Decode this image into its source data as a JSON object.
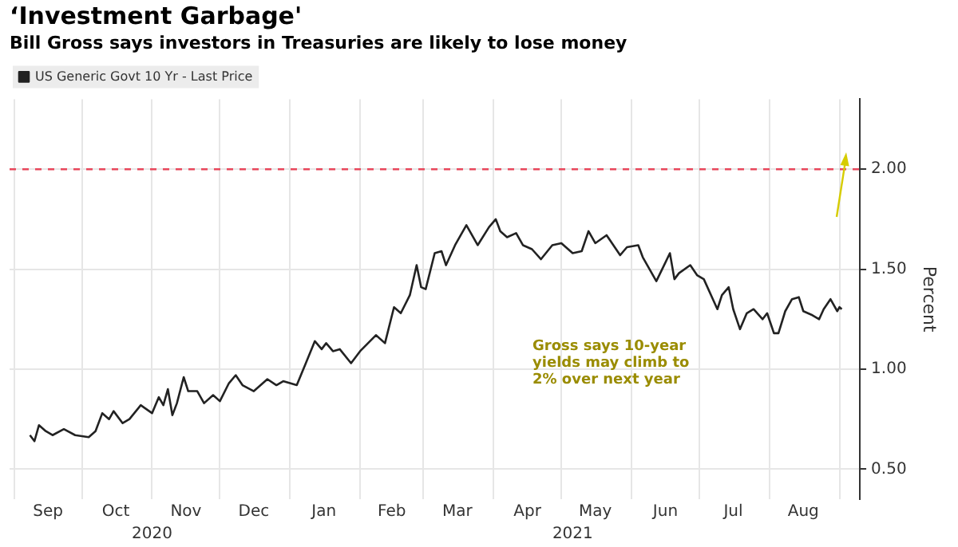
{
  "chart_data": {
    "type": "line",
    "title": "‘Investment Garbage'",
    "subtitle": "Bill Gross says investors in Treasuries are likely to lose money",
    "ylabel": "Percent",
    "annotations": [
      "Gross says 10-year yields may climb to 2% over next year"
    ],
    "x": [
      "2020-09-08",
      "2020-09-10",
      "2020-09-12",
      "2020-09-15",
      "2020-09-18",
      "2020-09-23",
      "2020-09-28",
      "2020-10-04",
      "2020-10-07",
      "2020-10-10",
      "2020-10-13",
      "2020-10-15",
      "2020-10-19",
      "2020-10-22",
      "2020-10-27",
      "2020-11-01",
      "2020-11-04",
      "2020-11-06",
      "2020-11-08",
      "2020-11-10",
      "2020-11-12",
      "2020-11-15",
      "2020-11-17",
      "2020-11-21",
      "2020-11-24",
      "2020-11-28",
      "2020-12-01",
      "2020-12-05",
      "2020-12-08",
      "2020-12-11",
      "2020-12-16",
      "2020-12-22",
      "2020-12-26",
      "2020-12-29",
      "2021-01-04",
      "2021-01-08",
      "2021-01-12",
      "2021-01-15",
      "2021-01-17",
      "2021-01-20",
      "2021-01-23",
      "2021-01-28",
      "2021-02-01",
      "2021-02-08",
      "2021-02-12",
      "2021-02-16",
      "2021-02-19",
      "2021-02-23",
      "2021-02-26",
      "2021-02-28",
      "2021-03-02",
      "2021-03-06",
      "2021-03-09",
      "2021-03-11",
      "2021-03-15",
      "2021-03-20",
      "2021-03-25",
      "2021-03-30",
      "2021-04-02",
      "2021-04-04",
      "2021-04-07",
      "2021-04-11",
      "2021-04-14",
      "2021-04-18",
      "2021-04-22",
      "2021-04-27",
      "2021-05-01",
      "2021-05-06",
      "2021-05-10",
      "2021-05-13",
      "2021-05-16",
      "2021-05-21",
      "2021-05-24",
      "2021-05-27",
      "2021-05-30",
      "2021-06-04",
      "2021-06-06",
      "2021-06-12",
      "2021-06-15",
      "2021-06-18",
      "2021-06-20",
      "2021-06-22",
      "2021-06-27",
      "2021-06-30",
      "2021-07-03",
      "2021-07-07",
      "2021-07-09",
      "2021-07-11",
      "2021-07-14",
      "2021-07-16",
      "2021-07-19",
      "2021-07-22",
      "2021-07-25",
      "2021-07-29",
      "2021-07-31",
      "2021-08-03",
      "2021-08-05",
      "2021-08-08",
      "2021-08-11",
      "2021-08-14",
      "2021-08-16",
      "2021-08-20",
      "2021-08-23",
      "2021-08-25",
      "2021-08-28",
      "2021-08-31",
      "2021-09-01",
      "2021-09-02"
    ],
    "series": [
      {
        "name": "US Generic Govt 10 Yr - Last Price",
        "color": "#222222",
        "values": [
          0.67,
          0.64,
          0.72,
          0.69,
          0.67,
          0.7,
          0.67,
          0.66,
          0.69,
          0.78,
          0.75,
          0.79,
          0.73,
          0.75,
          0.82,
          0.78,
          0.86,
          0.82,
          0.9,
          0.77,
          0.83,
          0.96,
          0.89,
          0.89,
          0.83,
          0.87,
          0.84,
          0.93,
          0.97,
          0.92,
          0.89,
          0.95,
          0.92,
          0.94,
          0.92,
          1.03,
          1.14,
          1.1,
          1.13,
          1.09,
          1.1,
          1.03,
          1.09,
          1.17,
          1.13,
          1.31,
          1.28,
          1.37,
          1.52,
          1.41,
          1.4,
          1.58,
          1.59,
          1.52,
          1.62,
          1.72,
          1.62,
          1.71,
          1.75,
          1.69,
          1.66,
          1.68,
          1.62,
          1.6,
          1.55,
          1.62,
          1.63,
          1.58,
          1.59,
          1.69,
          1.63,
          1.67,
          1.62,
          1.57,
          1.61,
          1.62,
          1.56,
          1.44,
          1.51,
          1.58,
          1.45,
          1.48,
          1.52,
          1.47,
          1.45,
          1.35,
          1.3,
          1.37,
          1.41,
          1.3,
          1.2,
          1.28,
          1.3,
          1.25,
          1.28,
          1.18,
          1.18,
          1.29,
          1.35,
          1.36,
          1.29,
          1.27,
          1.25,
          1.3,
          1.35,
          1.29,
          1.31,
          1.3
        ]
      }
    ],
    "xlim": [
      "2020-08-30",
      "2021-09-10"
    ],
    "xticks": [
      {
        "value": "2020-09-01",
        "label": null
      },
      {
        "value": "2020-09-16",
        "label": "Sep"
      },
      {
        "value": "2020-10-01",
        "label": null
      },
      {
        "value": "2020-10-16",
        "label": "Oct"
      },
      {
        "value": "2020-11-01",
        "label": null
      },
      {
        "value": "2020-11-16",
        "label": "Nov"
      },
      {
        "value": "2020-12-01",
        "label": null
      },
      {
        "value": "2020-12-16",
        "label": "Dec"
      },
      {
        "value": "2021-01-01",
        "label": null
      },
      {
        "value": "2021-01-16",
        "label": "Jan"
      },
      {
        "value": "2021-02-01",
        "label": null
      },
      {
        "value": "2021-02-15",
        "label": "Feb"
      },
      {
        "value": "2021-03-01",
        "label": null
      },
      {
        "value": "2021-03-16",
        "label": "Mar"
      },
      {
        "value": "2021-04-01",
        "label": null
      },
      {
        "value": "2021-04-16",
        "label": "Apr"
      },
      {
        "value": "2021-05-01",
        "label": null
      },
      {
        "value": "2021-05-16",
        "label": "May"
      },
      {
        "value": "2021-06-01",
        "label": null
      },
      {
        "value": "2021-06-16",
        "label": "Jun"
      },
      {
        "value": "2021-07-01",
        "label": null
      },
      {
        "value": "2021-07-16",
        "label": "Jul"
      },
      {
        "value": "2021-08-01",
        "label": null
      },
      {
        "value": "2021-08-16",
        "label": "Aug"
      },
      {
        "value": "2021-09-01",
        "label": null
      }
    ],
    "x2lim": [
      "2020-08-30",
      "2021-09-10"
    ],
    "x2ticks": [
      {
        "value": "2020-11-01",
        "label": "2020"
      },
      {
        "value": "2021-05-06",
        "label": "2021"
      }
    ],
    "ylim": [
      0.35,
      2.35
    ],
    "yticks": [
      {
        "value": 0.5,
        "label": "0.50"
      },
      {
        "value": 1,
        "label": "1.00"
      },
      {
        "value": 1.5,
        "label": "1.50"
      },
      {
        "value": 2,
        "label": "2.00"
      }
    ],
    "ref_lines": [
      {
        "axis": "y",
        "value": 2,
        "color": "#e8475b",
        "line_style": "dashed"
      }
    ],
    "grid": true,
    "legend": "top left",
    "marker": "none",
    "line_style": "solid"
  }
}
